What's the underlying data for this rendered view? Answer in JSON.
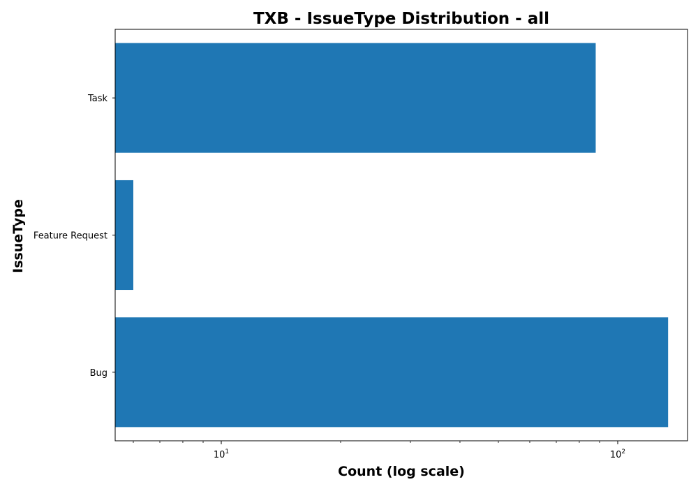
{
  "chart_data": {
    "type": "bar",
    "orientation": "horizontal",
    "title": "TXB - IssueType Distribution - all",
    "xlabel": "Count (log scale)",
    "ylabel": "IssueType",
    "xscale": "log",
    "xlim": [
      5.4,
      150
    ],
    "x_ticks": [
      {
        "value": 10,
        "base": "10",
        "exp": "1"
      },
      {
        "value": 100,
        "base": "10",
        "exp": "2"
      }
    ],
    "categories": [
      "Bug",
      "Feature Request",
      "Task"
    ],
    "values": [
      134,
      6,
      88
    ],
    "bar_color": "#1f77b4",
    "grid": false,
    "legend": "none"
  }
}
